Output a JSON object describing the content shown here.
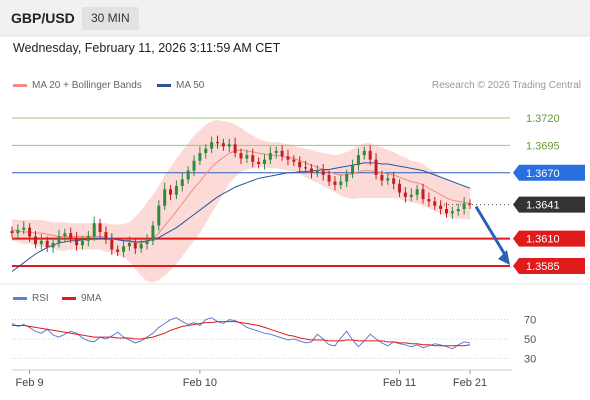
{
  "header": {
    "pair": "GBP/USD",
    "timeframe": "30 MIN"
  },
  "timestamp": "Wednesday, February 11, 2026 3:11:59 AM CET",
  "legend": {
    "ma20_label": "MA 20 + Bollinger Bands",
    "ma20_color": "#f28b82",
    "ma50_label": "MA 50",
    "ma50_color": "#2a5599",
    "source": "Research © 2026 Trading Central"
  },
  "rsi_legend": {
    "rsi_label": "RSI",
    "rsi_color": "#5b7fd6",
    "ma_label": "9MA",
    "ma_color": "#e01b1b"
  },
  "chart_data": {
    "type": "line",
    "price_range": [
      1.3565,
      1.374
    ],
    "current_price": "1.3641",
    "levels": [
      {
        "label": "1.3720",
        "value": 1.372,
        "style": "resistance-green"
      },
      {
        "label": "1.3695",
        "value": 1.3695,
        "style": "resistance-green"
      },
      {
        "label": "1.3670",
        "value": 1.367,
        "style": "pivot-blue"
      },
      {
        "label": "1.3641",
        "value": 1.3641,
        "style": "current-dark"
      },
      {
        "label": "1.3610",
        "value": 1.361,
        "style": "support-red"
      },
      {
        "label": "1.3585",
        "value": 1.3585,
        "style": "support-red"
      }
    ],
    "forecast_arrow": {
      "from": 1.3641,
      "to": 1.3585,
      "direction": "down"
    },
    "close_series": [
      1.3615,
      1.3618,
      1.362,
      1.3612,
      1.3605,
      1.3608,
      1.3602,
      1.3606,
      1.3612,
      1.3615,
      1.361,
      1.3604,
      1.3608,
      1.3612,
      1.3624,
      1.3616,
      1.3609,
      1.36,
      1.3598,
      1.3603,
      1.3606,
      1.3601,
      1.3605,
      1.3608,
      1.3622,
      1.364,
      1.3655,
      1.365,
      1.3658,
      1.3664,
      1.3672,
      1.3681,
      1.3688,
      1.3692,
      1.3698,
      1.3697,
      1.3694,
      1.3696,
      1.3688,
      1.3683,
      1.3686,
      1.368,
      1.3678,
      1.3682,
      1.3688,
      1.369,
      1.3685,
      1.3682,
      1.368,
      1.3675,
      1.3674,
      1.367,
      1.3672,
      1.3668,
      1.3662,
      1.3659,
      1.3662,
      1.3669,
      1.3677,
      1.3686,
      1.369,
      1.3682,
      1.3668,
      1.3663,
      1.3665,
      1.366,
      1.3652,
      1.3648,
      1.365,
      1.3655,
      1.3646,
      1.3644,
      1.364,
      1.3637,
      1.3633,
      1.3635,
      1.3637,
      1.3642,
      1.3641
    ],
    "ma20": [
      1.3618,
      1.3617,
      1.3616,
      1.3616,
      1.3615,
      1.3615,
      1.3614,
      1.3613,
      1.3612,
      1.3612,
      1.3612,
      1.3612,
      1.3612,
      1.3612,
      1.3612,
      1.3612,
      1.3611,
      1.361,
      1.3609,
      1.3608,
      1.3607,
      1.3606,
      1.3606,
      1.3607,
      1.361,
      1.3615,
      1.3622,
      1.3628,
      1.3635,
      1.3642,
      1.3649,
      1.3656,
      1.3662,
      1.3669,
      1.3675,
      1.368,
      1.3684,
      1.3688,
      1.369,
      1.3691,
      1.369,
      1.3689,
      1.3688,
      1.3687,
      1.3686,
      1.3686,
      1.3685,
      1.3684,
      1.3683,
      1.3681,
      1.3679,
      1.3677,
      1.3675,
      1.3673,
      1.3671,
      1.3669,
      1.3668,
      1.3668,
      1.3669,
      1.3671,
      1.3672,
      1.3672,
      1.3671,
      1.367,
      1.3669,
      1.3668,
      1.3666,
      1.3664,
      1.3662,
      1.3661,
      1.3659,
      1.3656,
      1.3653,
      1.365,
      1.3647,
      1.3645,
      1.3644,
      1.3643,
      1.3642
    ],
    "ma50": [
      1.358,
      1.3584,
      1.3588,
      1.3592,
      1.3596,
      1.3599,
      1.3602,
      1.3604,
      1.3606,
      1.3607,
      1.3608,
      1.3608,
      1.3609,
      1.3609,
      1.361,
      1.361,
      1.361,
      1.361,
      1.3609,
      1.3608,
      1.3608,
      1.3607,
      1.3607,
      1.3608,
      1.3609,
      1.3611,
      1.3614,
      1.3617,
      1.362,
      1.3624,
      1.3628,
      1.3632,
      1.3636,
      1.364,
      1.3644,
      1.3648,
      1.3651,
      1.3654,
      1.3657,
      1.3659,
      1.3661,
      1.3663,
      1.3665,
      1.3666,
      1.3667,
      1.3668,
      1.3669,
      1.367,
      1.367,
      1.3671,
      1.3671,
      1.3672,
      1.3672,
      1.3673,
      1.3673,
      1.3674,
      1.3675,
      1.3676,
      1.3677,
      1.3678,
      1.3679,
      1.3679,
      1.3679,
      1.3678,
      1.3678,
      1.3677,
      1.3676,
      1.3675,
      1.3674,
      1.3673,
      1.3672,
      1.367,
      1.3668,
      1.3666,
      1.3664,
      1.3662,
      1.366,
      1.3658,
      1.3656
    ],
    "bb_width": [
      0.001,
      0.001,
      0.0011,
      0.0011,
      0.0012,
      0.0012,
      0.0012,
      0.0012,
      0.0013,
      0.0013,
      0.0012,
      0.0012,
      0.0012,
      0.0012,
      0.0012,
      0.0012,
      0.0013,
      0.0013,
      0.0014,
      0.0015,
      0.0018,
      0.0024,
      0.003,
      0.0036,
      0.004,
      0.0043,
      0.0046,
      0.0047,
      0.0048,
      0.0048,
      0.0048,
      0.0048,
      0.0047,
      0.0045,
      0.0042,
      0.0038,
      0.0033,
      0.0028,
      0.0024,
      0.002,
      0.0017,
      0.0015,
      0.0013,
      0.0012,
      0.0012,
      0.0012,
      0.0012,
      0.0012,
      0.0012,
      0.0012,
      0.0013,
      0.0014,
      0.0014,
      0.0015,
      0.0016,
      0.0017,
      0.0019,
      0.0021,
      0.0023,
      0.0024,
      0.0025,
      0.0025,
      0.0024,
      0.0023,
      0.0022,
      0.0021,
      0.002,
      0.002,
      0.0019,
      0.0019,
      0.0019,
      0.0018,
      0.0018,
      0.0017,
      0.0017,
      0.0016,
      0.0016,
      0.0015,
      0.0015
    ],
    "rsi": {
      "ticks": [
        70,
        50,
        30
      ],
      "range": [
        20,
        80
      ],
      "values": [
        66,
        63,
        65,
        62,
        58,
        56,
        60,
        54,
        52,
        55,
        58,
        56,
        51,
        48,
        47,
        52,
        50,
        53,
        57,
        52,
        49,
        46,
        48,
        52,
        56,
        62,
        66,
        70,
        72,
        68,
        65,
        67,
        64,
        70,
        72,
        68,
        66,
        70,
        69,
        66,
        62,
        60,
        58,
        56,
        55,
        53,
        51,
        49,
        50,
        48,
        46,
        47,
        55,
        50,
        44,
        43,
        51,
        58,
        49,
        42,
        48,
        55,
        50,
        46,
        43,
        47,
        45,
        44,
        42,
        44,
        41,
        43,
        45,
        44,
        42,
        40,
        44,
        47,
        46
      ],
      "ma9": [
        64,
        64,
        64,
        63,
        62,
        61,
        60,
        59,
        58,
        57,
        56,
        55,
        54,
        53,
        52,
        52,
        52,
        52,
        51,
        51,
        51,
        50,
        50,
        51,
        52,
        54,
        56,
        59,
        61,
        63,
        64,
        65,
        66,
        67,
        67,
        68,
        68,
        68,
        68,
        67,
        66,
        65,
        64,
        62,
        60,
        58,
        56,
        54,
        53,
        51,
        50,
        49,
        49,
        49,
        48,
        48,
        48,
        49,
        49,
        48,
        48,
        48,
        48,
        48,
        47,
        47,
        46,
        46,
        45,
        45,
        44,
        44,
        43,
        43,
        43,
        43,
        43,
        43,
        44
      ]
    },
    "x_ticks": [
      {
        "label": "Feb 9",
        "index": 3
      },
      {
        "label": "Feb 10",
        "index": 32
      },
      {
        "label": "Feb 11",
        "index": 66
      },
      {
        "label": "Feb 21",
        "index": 78
      }
    ]
  }
}
